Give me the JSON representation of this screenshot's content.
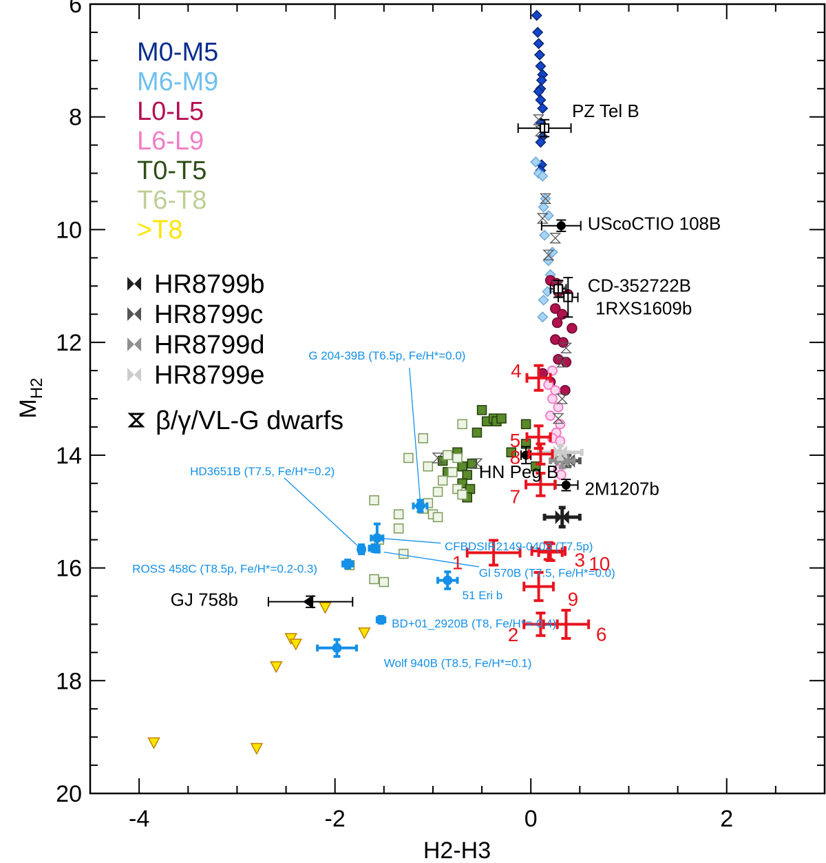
{
  "chart_data": {
    "type": "scatter",
    "xlabel": "H2-H3",
    "ylabel_main": "M",
    "ylabel_sub": "H2",
    "xlim": [
      -4.5,
      3.0
    ],
    "ylim": [
      20,
      6
    ],
    "x_ticks": [
      -4,
      -2,
      0,
      2
    ],
    "x_tick_labels": [
      "-4",
      "-2",
      "0",
      "2"
    ],
    "y_ticks": [
      6,
      8,
      10,
      12,
      14,
      16,
      18,
      20
    ],
    "y_tick_labels": [
      "6",
      "8",
      "10",
      "12",
      "14",
      "16",
      "18",
      "20"
    ],
    "colors": {
      "m0m5": "#1446c8",
      "m6m9": "#a8d4f4",
      "l0l5": "#b0124e",
      "l6l9": "#f07ec6",
      "t0t5": "#5a8a2a",
      "t6t8": "#c8dcb0",
      "gt8": "#ffe400",
      "blue_companion": "#1490e8",
      "red_candidate": "#e8141e",
      "ref": "#000000"
    },
    "spectral_legend": [
      {
        "label": "M0-M5",
        "color": "#0a2d8c"
      },
      {
        "label": "M6-M9",
        "color": "#6ec0ee"
      },
      {
        "label": "L0-L5",
        "color": "#b40e52"
      },
      {
        "label": "L6-L9",
        "color": "#f07ec6"
      },
      {
        "label": "T0-T5",
        "color": "#2e4d18"
      },
      {
        "label": "T6-T8",
        "color": "#bccf96"
      },
      {
        "label": ">T8",
        "color": "#ffe400"
      }
    ],
    "hr_legend": [
      {
        "label": "HR8799b",
        "color": "#202020"
      },
      {
        "label": "HR8799c",
        "color": "#555555"
      },
      {
        "label": "HR8799d",
        "color": "#909090"
      },
      {
        "label": "HR8799e",
        "color": "#cccccc"
      }
    ],
    "young_legend": "β/γ/VL-G dwarfs",
    "m0m5": [
      [
        0.06,
        6.2
      ],
      [
        0.07,
        6.5
      ],
      [
        0.08,
        6.7
      ],
      [
        0.09,
        6.9
      ],
      [
        0.1,
        7.1
      ],
      [
        0.12,
        7.25
      ],
      [
        0.11,
        7.35
      ],
      [
        0.1,
        7.5
      ],
      [
        0.08,
        7.55
      ],
      [
        0.1,
        7.7
      ],
      [
        0.12,
        7.85
      ],
      [
        0.1,
        8.1
      ],
      [
        0.12,
        8.35
      ],
      [
        0.1,
        8.45
      ],
      [
        0.11,
        8.85
      ],
      [
        0.1,
        8.95
      ]
    ],
    "m6m9": [
      [
        0.05,
        8.8
      ],
      [
        0.08,
        9.0
      ],
      [
        0.12,
        9.05
      ],
      [
        0.15,
        9.45
      ],
      [
        0.13,
        9.6
      ],
      [
        0.18,
        9.75
      ],
      [
        0.14,
        10.1
      ],
      [
        0.22,
        10.4
      ],
      [
        0.18,
        10.55
      ],
      [
        0.2,
        10.8
      ],
      [
        0.17,
        11.1
      ],
      [
        0.13,
        11.25
      ],
      [
        0.12,
        11.55
      ]
    ],
    "l0l5": [
      [
        0.2,
        10.9
      ],
      [
        0.26,
        10.95
      ],
      [
        0.28,
        11.1
      ],
      [
        0.38,
        11.15
      ],
      [
        0.25,
        11.4
      ],
      [
        0.32,
        11.5
      ],
      [
        0.27,
        11.65
      ],
      [
        0.42,
        11.75
      ],
      [
        0.25,
        11.95
      ],
      [
        0.33,
        12.0
      ],
      [
        0.28,
        12.3
      ],
      [
        0.36,
        12.35
      ],
      [
        0.12,
        12.55
      ],
      [
        0.2,
        12.7
      ],
      [
        0.35,
        12.85
      ]
    ],
    "l6l9": [
      [
        0.22,
        12.5
      ],
      [
        0.18,
        12.75
      ],
      [
        0.25,
        12.85
      ],
      [
        0.22,
        13.0
      ],
      [
        0.28,
        13.15
      ],
      [
        0.2,
        13.3
      ],
      [
        0.3,
        13.45
      ],
      [
        0.26,
        13.6
      ],
      [
        0.22,
        13.7
      ],
      [
        0.3,
        13.75
      ],
      [
        0.28,
        14.25
      ],
      [
        0.31,
        14.35
      ]
    ],
    "t0t5": [
      [
        -0.5,
        13.2
      ],
      [
        -0.45,
        13.4
      ],
      [
        -0.38,
        13.35
      ],
      [
        -0.35,
        13.4
      ],
      [
        -0.3,
        13.35
      ],
      [
        -0.55,
        13.6
      ],
      [
        -0.05,
        13.45
      ],
      [
        -0.05,
        13.8
      ],
      [
        -0.2,
        13.95
      ],
      [
        -0.75,
        13.95
      ],
      [
        -0.9,
        14.1
      ],
      [
        -0.6,
        14.15
      ],
      [
        0.05,
        14.2
      ],
      [
        -0.7,
        14.2
      ],
      [
        -0.85,
        14.3
      ],
      [
        -0.65,
        14.35
      ],
      [
        -0.7,
        14.5
      ],
      [
        -0.62,
        14.6
      ],
      [
        -0.65,
        14.75
      ]
    ],
    "t6t8": [
      [
        -1.1,
        13.7
      ],
      [
        -0.7,
        13.45
      ],
      [
        -0.85,
        14.0
      ],
      [
        -0.75,
        14.05
      ],
      [
        -1.25,
        14.05
      ],
      [
        -1.05,
        14.2
      ],
      [
        -0.8,
        14.3
      ],
      [
        -0.9,
        14.45
      ],
      [
        -0.75,
        14.6
      ],
      [
        -0.7,
        14.7
      ],
      [
        -0.95,
        14.65
      ],
      [
        -1.05,
        14.85
      ],
      [
        -1.1,
        14.95
      ],
      [
        -1.0,
        15.05
      ],
      [
        -0.95,
        15.1
      ],
      [
        -1.6,
        14.8
      ],
      [
        -1.35,
        15.05
      ],
      [
        -1.35,
        15.3
      ],
      [
        -1.55,
        15.5
      ],
      [
        -1.3,
        15.75
      ],
      [
        -1.85,
        15.95
      ],
      [
        -1.6,
        16.2
      ],
      [
        -1.5,
        16.25
      ]
    ],
    "gt8": [
      [
        -2.1,
        16.7
      ],
      [
        -1.7,
        17.15
      ],
      [
        -2.45,
        17.25
      ],
      [
        -2.4,
        17.35
      ],
      [
        -2.6,
        17.75
      ],
      [
        -3.85,
        19.1
      ],
      [
        -2.8,
        19.2
      ]
    ],
    "young_markers": [
      [
        0.08,
        8.05
      ],
      [
        0.1,
        8.25
      ],
      [
        0.15,
        9.45
      ],
      [
        0.12,
        9.8
      ],
      [
        0.25,
        10.15
      ],
      [
        0.18,
        10.45
      ],
      [
        0.28,
        11.0
      ],
      [
        0.3,
        11.1
      ],
      [
        0.36,
        12.1
      ],
      [
        0.32,
        12.35
      ],
      [
        0.32,
        13.0
      ],
      [
        0.28,
        13.35
      ],
      [
        -0.95,
        14.05
      ],
      [
        -0.55,
        14.15
      ],
      [
        0.26,
        14.0
      ]
    ],
    "hr8799": [
      {
        "name": "HR8799b",
        "x": 0.32,
        "y": 15.1,
        "xerr": 0.18,
        "yerr": 0.17
      },
      {
        "name": "HR8799c",
        "x": 0.38,
        "y": 14.1,
        "xerr": 0.12,
        "yerr": 0.1
      },
      {
        "name": "HR8799d",
        "x": 0.32,
        "y": 14.1,
        "xerr": 0.12,
        "yerr": 0.12
      },
      {
        "name": "HR8799e",
        "x": 0.3,
        "y": 13.95,
        "xerr": 0.22,
        "yerr": 0.12
      }
    ],
    "black_companions": [
      {
        "label": "PZ Tel B",
        "x": 0.14,
        "y": 8.2,
        "xerr": 0.27,
        "yerr": 0.15,
        "label_x": 0.42,
        "label_y": 7.88
      },
      {
        "label": "UScoCTIO 108B",
        "x": 0.31,
        "y": 9.93,
        "xerr": 0.2,
        "yerr": 0.1,
        "label_x": 0.58,
        "label_y": 9.88
      },
      {
        "label": "CD-352722B",
        "x": 0.28,
        "y": 11.05,
        "xerr": 0.08,
        "yerr": 0.15,
        "label_x": 0.58,
        "label_y": 10.98
      },
      {
        "label": "1RXS1609b",
        "x": 0.38,
        "y": 11.2,
        "xerr": 0.1,
        "yerr": 0.35,
        "label_x": 0.66,
        "label_y": 11.38
      },
      {
        "label": "HN Peg B",
        "x": -0.05,
        "y": 14.0,
        "xerr": 0.05,
        "yerr": 0.15,
        "label_x": -0.53,
        "label_y": 14.28
      },
      {
        "label": "2M1207b",
        "x": 0.36,
        "y": 14.53,
        "xerr": 0.12,
        "yerr": 0.1,
        "label_x": 0.55,
        "label_y": 14.58
      },
      {
        "label": "GJ 758b",
        "x": -2.25,
        "y": 16.6,
        "xerr": 0.43,
        "yerr": 0.1,
        "label_x": -3.68,
        "label_y": 16.55
      }
    ],
    "blue_companions": [
      {
        "label": "G 204-39B (T6.5p, Fe/H*=0.0)",
        "x": -1.13,
        "y": 14.9,
        "xerr": 0.07,
        "yerr": 0.1,
        "label_x": -2.27,
        "label_y": 12.22,
        "lx1": -1.24,
        "ly1": 12.45,
        "lx2": -1.13,
        "ly2": 14.8
      },
      {
        "label": "HD3651B (T7.5, Fe/H*=0.2)",
        "x": -1.73,
        "y": 15.67,
        "xerr": 0.03,
        "yerr": 0.08,
        "label_x": -3.48,
        "label_y": 14.27,
        "lx1": -2.52,
        "ly1": 14.4,
        "lx2": -1.73,
        "ly2": 15.67
      },
      {
        "label": "CFBDSIR2149-0403 (T7.5p)",
        "x": -1.57,
        "y": 15.47,
        "xerr": 0.06,
        "yerr": 0.25,
        "label_x": -0.88,
        "label_y": 15.6,
        "lx1": -1.57,
        "ly1": 15.47,
        "lx2": -0.92,
        "ly2": 15.56
      },
      {
        "label": "ROSS 458C (T8.5p,  Fe/H*=0.2-0.3)",
        "x": -1.87,
        "y": 15.93,
        "xerr": 0.05,
        "yerr": 0.07,
        "label_x": -4.07,
        "label_y": 16.0,
        "lx1": -1.5,
        "ly1": 15.72,
        "lx2": -0.53,
        "ly2": 15.98
      },
      {
        "label": "Gl 570B (T7.5, Fe/H*=0.0)",
        "x": -1.6,
        "y": 15.65,
        "xerr": 0.05,
        "yerr": 0.06,
        "label_x": -0.53,
        "label_y": 16.07
      },
      {
        "label": "51 Eri b",
        "x": -0.85,
        "y": 16.22,
        "xerr": 0.1,
        "yerr": 0.15,
        "label_x": -0.7,
        "label_y": 16.47
      },
      {
        "label": "BD+01_2920B (T8, Fe/H*=-0.4)",
        "x": -1.53,
        "y": 16.92,
        "xerr": 0.04,
        "yerr": 0.06,
        "label_x": -1.42,
        "label_y": 16.97
      },
      {
        "label": "Wolf 940B (T8.5, Fe/H*=0.1)",
        "x": -1.98,
        "y": 17.42,
        "xerr": 0.2,
        "yerr": 0.15,
        "label_x": -1.5,
        "label_y": 17.67
      }
    ],
    "red_candidates": [
      {
        "label": "1",
        "x": -0.38,
        "y": 15.73,
        "xerr": 0.27,
        "yerr": 0.22,
        "lx": -0.75,
        "ly": 15.9
      },
      {
        "label": "2",
        "x": 0.1,
        "y": 17.0,
        "xerr": 0.17,
        "yerr": 0.2,
        "lx": -0.18,
        "ly": 17.18
      },
      {
        "label": "3",
        "x": 0.18,
        "y": 15.7,
        "xerr": 0.17,
        "yerr": 0.15,
        "lx": 0.5,
        "ly": 15.85
      },
      {
        "label": "4",
        "x": 0.08,
        "y": 12.63,
        "xerr": 0.12,
        "yerr": 0.22,
        "lx": -0.15,
        "ly": 12.5
      },
      {
        "label": "5",
        "x": 0.08,
        "y": 13.68,
        "xerr": 0.12,
        "yerr": 0.2,
        "lx": -0.16,
        "ly": 13.73
      },
      {
        "label": "6",
        "x": 0.36,
        "y": 17.0,
        "xerr": 0.23,
        "yerr": 0.25,
        "lx": 0.72,
        "ly": 17.17
      },
      {
        "label": "7",
        "x": 0.1,
        "y": 14.52,
        "xerr": 0.15,
        "yerr": 0.2,
        "lx": -0.16,
        "ly": 14.73
      },
      {
        "label": "8",
        "x": 0.1,
        "y": 13.98,
        "xerr": 0.12,
        "yerr": 0.18,
        "lx": -0.16,
        "ly": 14.03
      },
      {
        "label": "9",
        "x": 0.08,
        "y": 16.33,
        "xerr": 0.15,
        "yerr": 0.25,
        "lx": 0.43,
        "ly": 16.55
      },
      {
        "label": "10",
        "x": 0.2,
        "y": 15.72,
        "xerr": 0.12,
        "yerr": 0.15,
        "lx": 0.7,
        "ly": 15.92
      }
    ]
  }
}
